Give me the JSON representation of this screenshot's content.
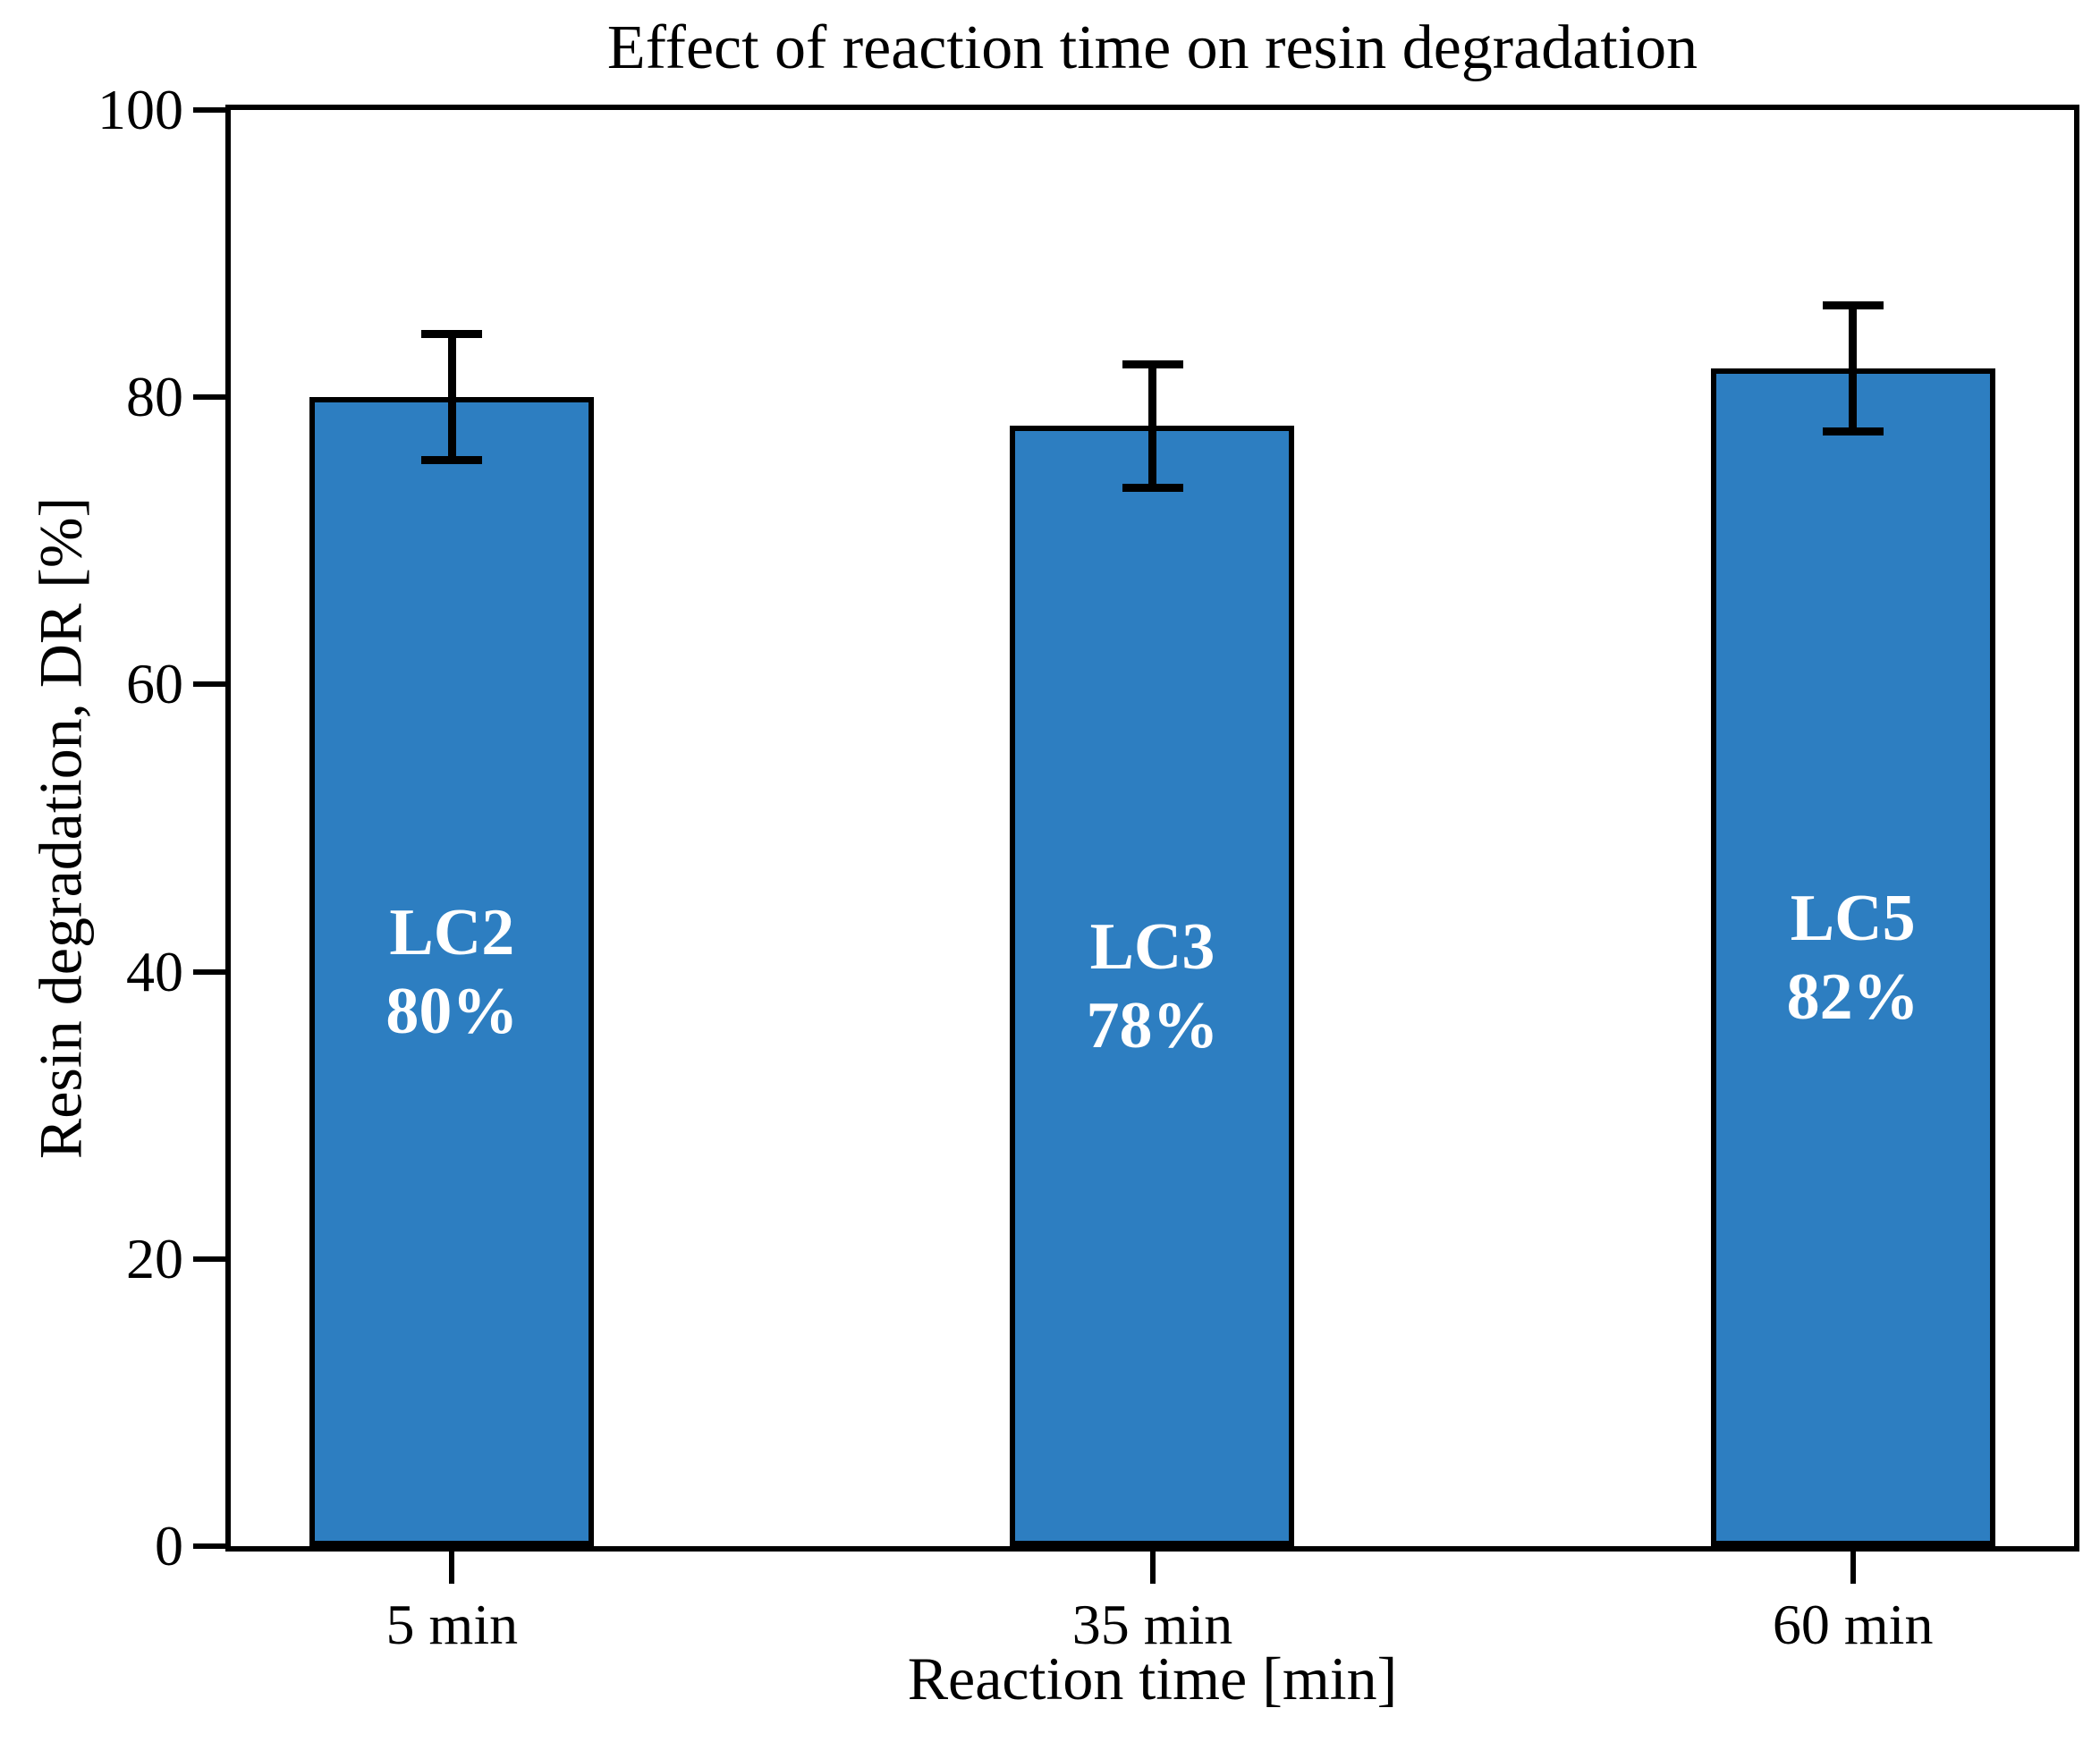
{
  "figure": {
    "title": "Effect of reaction time on resin degradation"
  },
  "chart_data": {
    "type": "bar",
    "title": "Effect of reaction time on resin degradation",
    "xlabel": "Reaction time [min]",
    "ylabel": "Resin degradation, DR [%]",
    "categories": [
      "5 min",
      "35 min",
      "60 min"
    ],
    "series": [
      {
        "name": "Resin degradation DR",
        "values": [
          80,
          78,
          82
        ],
        "errors": [
          4.4,
          4.3,
          4.4
        ]
      }
    ],
    "bar_labels": [
      [
        "LC2",
        "80%"
      ],
      [
        "LC3",
        "78%"
      ],
      [
        "LC5",
        "82%"
      ]
    ],
    "ylim": [
      0,
      100
    ],
    "yticks": [
      0,
      20,
      40,
      60,
      80,
      100
    ],
    "grid": false,
    "legend_position": "none",
    "colors": {
      "bar_fill": "#2d7ec1",
      "bar_edge": "#000000",
      "error_bar": "#000000",
      "bar_label_text": "#ffffff",
      "axis": "#000000",
      "background": "#ffffff"
    }
  }
}
